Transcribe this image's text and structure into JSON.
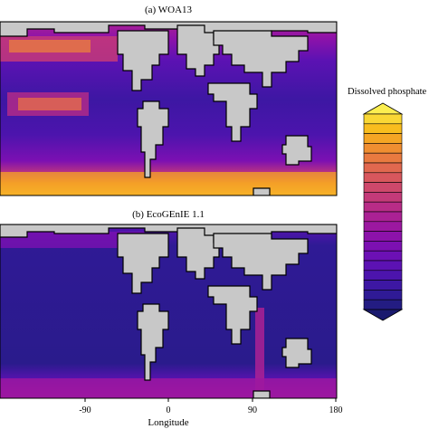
{
  "chart_data": [
    {
      "type": "heatmap",
      "title": "(a) WOA13",
      "colorbar_scale": "plasma-like (dark navy to yellow)",
      "land_color": "#c8c8c8",
      "regions": {
        "southern_ocean_band": "high (yellow/orange)",
        "north_pacific": "high (orange)",
        "east_equatorial_pacific": "elevated (orange)",
        "subtropical_gyres": "low (dark navy/purple)",
        "arctic": "moderate (purple)"
      }
    },
    {
      "type": "heatmap",
      "title": "(b) EcoGEnIE 1.1",
      "xlabel": "Longitude",
      "xticks": [
        "-90",
        "0",
        "90",
        "180"
      ],
      "xlim": [
        -180,
        180
      ],
      "land_color": "#c8c8c8",
      "regions": {
        "southern_ocean_band": "moderate (purple/magenta)",
        "north_pacific": "low-moderate (purple)",
        "indian_ocean_meridional_streak": "elevated (magenta)",
        "open_ocean": "low (dark navy)"
      }
    }
  ],
  "colorbar": {
    "title": "Dissolved phosphate (",
    "n_levels": 20,
    "extend": "both",
    "colors": [
      "#1a1a6e",
      "#231c82",
      "#2f1a95",
      "#3d17a3",
      "#4c14ad",
      "#5c12b3",
      "#6c10b5",
      "#7c10b2",
      "#8c12aa",
      "#9c18a0",
      "#ab2194",
      "#b82c87",
      "#c43a79",
      "#ce486b",
      "#d8575d",
      "#e1684f",
      "#e97a40",
      "#f08e31",
      "#f5a524",
      "#f8bd1e",
      "#f9d735",
      "#fbee50"
    ]
  }
}
